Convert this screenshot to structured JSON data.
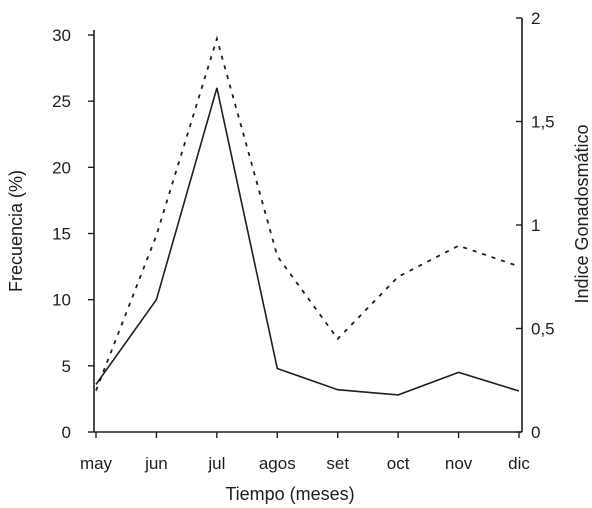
{
  "chart_data": {
    "type": "line",
    "title": "",
    "xlabel": "Tiempo (meses)",
    "ylabel_left": "Frecuencia (%)",
    "ylabel_right": "Indice Gonadosmático",
    "categories": [
      "may",
      "jun",
      "jul",
      "agos",
      "set",
      "oct",
      "nov",
      "dic"
    ],
    "ylim_left": [
      0,
      30
    ],
    "ylim_right": [
      0,
      2
    ],
    "yticks_left": [
      "0",
      "5",
      "10",
      "15",
      "20",
      "25",
      "30"
    ],
    "yticks_right": [
      "0",
      "0,5",
      "1",
      "1,5",
      "2"
    ],
    "grid": false,
    "series": [
      {
        "axis": "left",
        "style": "solid",
        "color": "#1e1e1e",
        "values": [
          3.6,
          10.0,
          26.0,
          4.8,
          3.2,
          2.8,
          4.5,
          3.1
        ]
      },
      {
        "axis": "right",
        "style": "dotted",
        "color": "#1e1e1e",
        "values": [
          0.2,
          0.95,
          1.9,
          0.85,
          0.45,
          0.75,
          0.9,
          0.8
        ]
      }
    ]
  }
}
